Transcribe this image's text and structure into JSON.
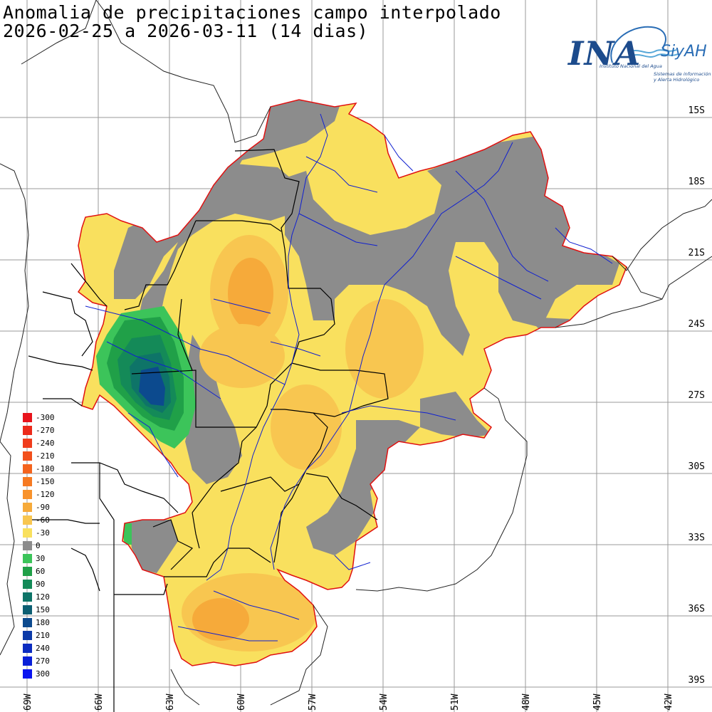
{
  "title": {
    "line1": "Anomalia de precipitaciones campo interpolado",
    "line2": "2026-02-25 a 2026-03-11 (14 dias)"
  },
  "logo": {
    "ina": "INA",
    "siyah": "SiyAH",
    "subtitle1": "Instituto Nacional del Agua",
    "subtitle2a": "Sistemas de información",
    "subtitle2b": "y Alerta Hidrológico"
  },
  "legend": {
    "items": [
      {
        "label": "-300",
        "color": "#e8141c"
      },
      {
        "label": "-270",
        "color": "#ec2a1a"
      },
      {
        "label": "-240",
        "color": "#f03c1c"
      },
      {
        "label": "-210",
        "color": "#f2501c"
      },
      {
        "label": "-180",
        "color": "#f4641e"
      },
      {
        "label": "-150",
        "color": "#f67a22"
      },
      {
        "label": "-120",
        "color": "#f8922c"
      },
      {
        "label": "-90",
        "color": "#f6aa3a"
      },
      {
        "label": "-60",
        "color": "#f8c650"
      },
      {
        "label": "-30",
        "color": "#f9e05e"
      },
      {
        "label": "0",
        "color": "#8c8c8c"
      },
      {
        "label": "30",
        "color": "#3cc45a"
      },
      {
        "label": "60",
        "color": "#20a048"
      },
      {
        "label": "90",
        "color": "#148a58"
      },
      {
        "label": "120",
        "color": "#0e7468"
      },
      {
        "label": "150",
        "color": "#0c5e72"
      },
      {
        "label": "180",
        "color": "#0c4a8e"
      },
      {
        "label": "210",
        "color": "#0c3aa8"
      },
      {
        "label": "240",
        "color": "#0c2cc0"
      },
      {
        "label": "270",
        "color": "#0a20d8"
      },
      {
        "label": "300",
        "color": "#0a14f0"
      }
    ]
  },
  "lat_labels": [
    "15S",
    "18S",
    "21S",
    "24S",
    "27S",
    "30S",
    "33S",
    "36S",
    "39S"
  ],
  "lon_labels": [
    "69W",
    "66W",
    "63W",
    "60W",
    "57W",
    "54W",
    "51W",
    "48W",
    "45W",
    "42W"
  ],
  "colors": {
    "basin_border": "#e01010",
    "rivers": "#1020d0",
    "borders": "#000000",
    "grid": "#999999"
  }
}
